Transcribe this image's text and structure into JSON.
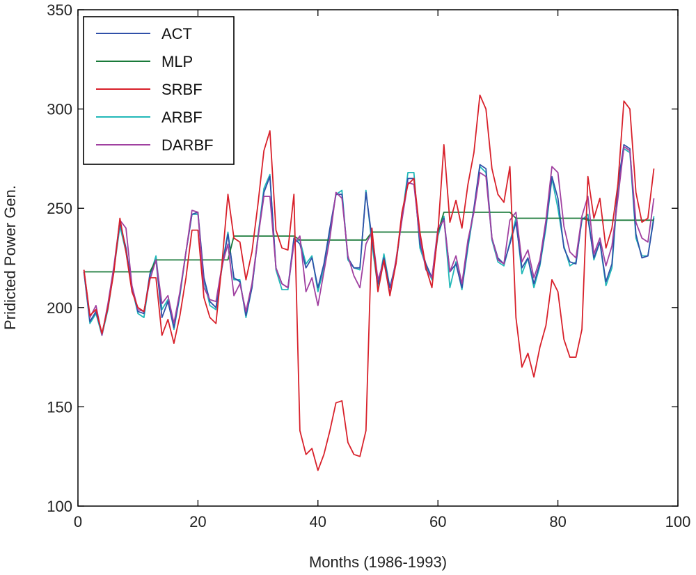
{
  "chart_data": {
    "type": "line",
    "title": "",
    "xlabel": "Months (1986-1993)",
    "ylabel": "Pridicted Power Gen.",
    "xlim": [
      0,
      100
    ],
    "ylim": [
      100,
      350
    ],
    "xticks": [
      0,
      20,
      40,
      60,
      80,
      100
    ],
    "yticks": [
      100,
      150,
      200,
      250,
      300,
      350
    ],
    "grid": false,
    "legend_position": "top-left",
    "x": [
      1,
      2,
      3,
      4,
      5,
      6,
      7,
      8,
      9,
      10,
      11,
      12,
      13,
      14,
      15,
      16,
      17,
      18,
      19,
      20,
      21,
      22,
      23,
      24,
      25,
      26,
      27,
      28,
      29,
      30,
      31,
      32,
      33,
      34,
      35,
      36,
      37,
      38,
      39,
      40,
      41,
      42,
      43,
      44,
      45,
      46,
      47,
      48,
      49,
      50,
      51,
      52,
      53,
      54,
      55,
      56,
      57,
      58,
      59,
      60,
      61,
      62,
      63,
      64,
      65,
      66,
      67,
      68,
      69,
      70,
      71,
      72,
      73,
      74,
      75,
      76,
      77,
      78,
      79,
      80,
      81,
      82,
      83,
      84,
      85,
      86,
      87,
      88,
      89,
      90,
      91,
      92,
      93,
      94,
      95,
      96
    ],
    "series": [
      {
        "name": "ACT",
        "color": "#3050a8",
        "values": [
          218,
          193,
          198,
          187,
          200,
          220,
          243,
          230,
          210,
          198,
          197,
          217,
          224,
          195,
          203,
          190,
          207,
          228,
          247,
          248,
          215,
          203,
          200,
          220,
          237,
          215,
          213,
          196,
          210,
          235,
          258,
          266,
          220,
          212,
          210,
          235,
          232,
          220,
          225,
          210,
          222,
          240,
          257,
          257,
          225,
          220,
          220,
          258,
          235,
          212,
          225,
          210,
          222,
          245,
          265,
          265,
          232,
          222,
          215,
          238,
          245,
          218,
          222,
          210,
          232,
          250,
          272,
          270,
          235,
          225,
          222,
          232,
          243,
          220,
          225,
          212,
          222,
          242,
          266,
          255,
          230,
          223,
          222,
          245,
          245,
          225,
          233,
          213,
          222,
          262,
          282,
          280,
          237,
          225,
          226,
          245
        ]
      },
      {
        "name": "MLP",
        "color": "#1a7a3a",
        "values": [
          218,
          218,
          218,
          218,
          218,
          218,
          218,
          218,
          218,
          218,
          218,
          218,
          224,
          224,
          224,
          224,
          224,
          224,
          224,
          224,
          224,
          224,
          224,
          224,
          224,
          236,
          236,
          236,
          236,
          236,
          236,
          236,
          236,
          236,
          236,
          236,
          234,
          234,
          234,
          234,
          234,
          234,
          234,
          234,
          234,
          234,
          234,
          234,
          238,
          238,
          238,
          238,
          238,
          238,
          238,
          238,
          238,
          238,
          238,
          238,
          248,
          248,
          248,
          248,
          248,
          248,
          248,
          248,
          248,
          248,
          248,
          248,
          245,
          245,
          245,
          245,
          245,
          245,
          245,
          245,
          245,
          245,
          245,
          245,
          244,
          244,
          244,
          244,
          244,
          244,
          244,
          244,
          244,
          244,
          244,
          244
        ]
      },
      {
        "name": "SRBF",
        "color": "#d8202a",
        "values": [
          219,
          196,
          199,
          187,
          200,
          218,
          245,
          228,
          208,
          200,
          198,
          215,
          215,
          186,
          194,
          182,
          196,
          215,
          239,
          239,
          205,
          195,
          192,
          222,
          257,
          235,
          233,
          214,
          228,
          252,
          279,
          289,
          239,
          230,
          229,
          257,
          138,
          126,
          129,
          118,
          126,
          138,
          152,
          153,
          132,
          126,
          125,
          138,
          240,
          208,
          224,
          206,
          222,
          248,
          262,
          265,
          238,
          220,
          210,
          238,
          282,
          243,
          254,
          240,
          262,
          278,
          307,
          300,
          270,
          257,
          253,
          271,
          195,
          170,
          177,
          165,
          180,
          191,
          214,
          208,
          184,
          175,
          175,
          189,
          266,
          245,
          255,
          230,
          240,
          262,
          304,
          300,
          258,
          243,
          245,
          270
        ]
      },
      {
        "name": "ARBF",
        "color": "#22b8b8",
        "values": [
          218,
          192,
          197,
          186,
          199,
          219,
          241,
          228,
          210,
          197,
          195,
          216,
          226,
          199,
          204,
          189,
          206,
          228,
          247,
          247,
          214,
          201,
          199,
          221,
          238,
          214,
          214,
          195,
          210,
          236,
          260,
          267,
          219,
          209,
          209,
          233,
          234,
          222,
          226,
          208,
          220,
          238,
          257,
          259,
          224,
          220,
          219,
          259,
          232,
          210,
          227,
          210,
          223,
          245,
          268,
          268,
          230,
          221,
          214,
          236,
          246,
          210,
          223,
          209,
          230,
          249,
          271,
          268,
          234,
          223,
          221,
          233,
          245,
          217,
          225,
          210,
          221,
          240,
          265,
          250,
          231,
          221,
          223,
          244,
          247,
          224,
          233,
          211,
          220,
          260,
          280,
          278,
          235,
          226,
          226,
          246
        ]
      },
      {
        "name": "DARBF",
        "color": "#a040a0",
        "values": [
          219,
          195,
          201,
          186,
          202,
          221,
          244,
          240,
          211,
          199,
          198,
          214,
          224,
          202,
          206,
          192,
          208,
          228,
          249,
          248,
          210,
          204,
          203,
          221,
          232,
          206,
          212,
          198,
          212,
          235,
          256,
          256,
          220,
          212,
          210,
          232,
          236,
          208,
          215,
          201,
          218,
          235,
          258,
          255,
          226,
          216,
          210,
          232,
          238,
          214,
          223,
          207,
          224,
          244,
          263,
          262,
          235,
          219,
          215,
          240,
          244,
          218,
          226,
          212,
          234,
          248,
          268,
          266,
          235,
          224,
          222,
          244,
          248,
          223,
          229,
          215,
          224,
          244,
          271,
          268,
          241,
          228,
          225,
          246,
          256,
          227,
          235,
          221,
          231,
          255,
          281,
          279,
          243,
          235,
          233,
          255
        ]
      }
    ]
  }
}
